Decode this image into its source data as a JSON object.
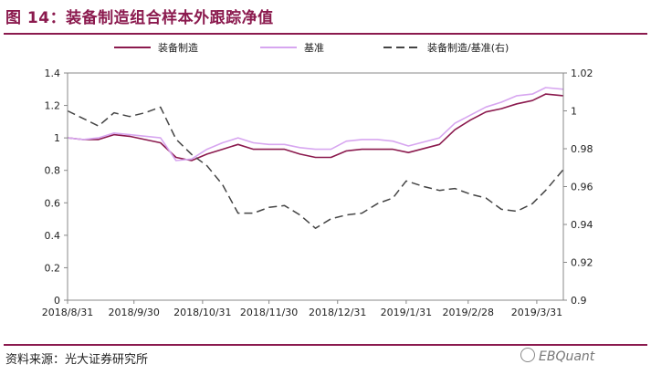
{
  "header": {
    "title": "图 14：装备制造组合样本外跟踪净值"
  },
  "footer": {
    "source": "资料来源：光大证券研究所",
    "watermark": "EBQuant"
  },
  "colors": {
    "title": "#8B1A4E",
    "series_portfolio": "#8B1A4E",
    "series_benchmark": "#D7A6F0",
    "series_ratio": "#444444"
  },
  "chart_data": {
    "type": "line",
    "legend_position": "top",
    "grid": false,
    "x_ticks": [
      "2018/8/31",
      "2018/9/30",
      "2018/10/31",
      "2018/11/30",
      "2018/12/31",
      "2019/1/31",
      "2019/2/28",
      "2019/3/31"
    ],
    "x_range": [
      "2018-08-31",
      "2019-04-12"
    ],
    "y_left": {
      "range": [
        0,
        1.4
      ],
      "ticks": [
        "0",
        "0.2",
        "0.4",
        "0.6",
        "0.8",
        "1",
        "1.2",
        "1.4"
      ]
    },
    "y_right": {
      "range": [
        0.9,
        1.02
      ],
      "ticks": [
        "0.9",
        "0.92",
        "0.94",
        "0.96",
        "0.98",
        "1",
        "1.02"
      ]
    },
    "series": [
      {
        "name": "装备制造",
        "axis": "left",
        "style": "solid",
        "data": [
          [
            "2018-08-31",
            1.0
          ],
          [
            "2018-09-07",
            0.99
          ],
          [
            "2018-09-14",
            0.99
          ],
          [
            "2018-09-21",
            1.02
          ],
          [
            "2018-09-28",
            1.01
          ],
          [
            "2018-10-12",
            0.97
          ],
          [
            "2018-10-19",
            0.88
          ],
          [
            "2018-10-26",
            0.86
          ],
          [
            "2018-11-02",
            0.9
          ],
          [
            "2018-11-09",
            0.93
          ],
          [
            "2018-11-16",
            0.96
          ],
          [
            "2018-11-23",
            0.93
          ],
          [
            "2018-11-30",
            0.93
          ],
          [
            "2018-12-07",
            0.93
          ],
          [
            "2018-12-14",
            0.9
          ],
          [
            "2018-12-21",
            0.88
          ],
          [
            "2018-12-28",
            0.88
          ],
          [
            "2019-01-04",
            0.92
          ],
          [
            "2019-01-11",
            0.93
          ],
          [
            "2019-01-18",
            0.93
          ],
          [
            "2019-01-25",
            0.93
          ],
          [
            "2019-02-01",
            0.91
          ],
          [
            "2019-02-15",
            0.96
          ],
          [
            "2019-02-22",
            1.05
          ],
          [
            "2019-03-01",
            1.11
          ],
          [
            "2019-03-08",
            1.16
          ],
          [
            "2019-03-15",
            1.18
          ],
          [
            "2019-03-22",
            1.21
          ],
          [
            "2019-03-29",
            1.23
          ],
          [
            "2019-04-04",
            1.27
          ],
          [
            "2019-04-12",
            1.26
          ]
        ]
      },
      {
        "name": "基准",
        "axis": "left",
        "style": "solid",
        "data": [
          [
            "2018-08-31",
            1.0
          ],
          [
            "2018-09-07",
            0.99
          ],
          [
            "2018-09-14",
            1.0
          ],
          [
            "2018-09-21",
            1.03
          ],
          [
            "2018-09-28",
            1.02
          ],
          [
            "2018-10-12",
            1.0
          ],
          [
            "2018-10-19",
            0.86
          ],
          [
            "2018-10-26",
            0.87
          ],
          [
            "2018-11-02",
            0.93
          ],
          [
            "2018-11-09",
            0.97
          ],
          [
            "2018-11-16",
            1.0
          ],
          [
            "2018-11-23",
            0.97
          ],
          [
            "2018-11-30",
            0.96
          ],
          [
            "2018-12-07",
            0.96
          ],
          [
            "2018-12-14",
            0.94
          ],
          [
            "2018-12-21",
            0.93
          ],
          [
            "2018-12-28",
            0.93
          ],
          [
            "2019-01-04",
            0.98
          ],
          [
            "2019-01-11",
            0.99
          ],
          [
            "2019-01-18",
            0.99
          ],
          [
            "2019-01-25",
            0.98
          ],
          [
            "2019-02-01",
            0.95
          ],
          [
            "2019-02-15",
            1.0
          ],
          [
            "2019-02-22",
            1.09
          ],
          [
            "2019-03-01",
            1.14
          ],
          [
            "2019-03-08",
            1.19
          ],
          [
            "2019-03-15",
            1.22
          ],
          [
            "2019-03-22",
            1.26
          ],
          [
            "2019-03-29",
            1.27
          ],
          [
            "2019-04-04",
            1.31
          ],
          [
            "2019-04-12",
            1.3
          ]
        ]
      },
      {
        "name": "装备制造/基准(右)",
        "axis": "right",
        "style": "dashed",
        "data": [
          [
            "2018-08-31",
            1.0
          ],
          [
            "2018-09-07",
            0.996
          ],
          [
            "2018-09-14",
            0.992
          ],
          [
            "2018-09-21",
            0.999
          ],
          [
            "2018-09-28",
            0.997
          ],
          [
            "2018-10-05",
            0.999
          ],
          [
            "2018-10-12",
            1.002
          ],
          [
            "2018-10-19",
            0.985
          ],
          [
            "2018-10-26",
            0.977
          ],
          [
            "2018-11-02",
            0.971
          ],
          [
            "2018-11-09",
            0.961
          ],
          [
            "2018-11-16",
            0.946
          ],
          [
            "2018-11-23",
            0.946
          ],
          [
            "2018-11-30",
            0.949
          ],
          [
            "2018-12-07",
            0.95
          ],
          [
            "2018-12-14",
            0.945
          ],
          [
            "2018-12-21",
            0.938
          ],
          [
            "2018-12-28",
            0.943
          ],
          [
            "2019-01-04",
            0.945
          ],
          [
            "2019-01-11",
            0.946
          ],
          [
            "2019-01-18",
            0.951
          ],
          [
            "2019-01-25",
            0.954
          ],
          [
            "2019-01-31",
            0.963
          ],
          [
            "2019-02-08",
            0.96
          ],
          [
            "2019-02-15",
            0.958
          ],
          [
            "2019-02-22",
            0.959
          ],
          [
            "2019-03-01",
            0.956
          ],
          [
            "2019-03-08",
            0.954
          ],
          [
            "2019-03-15",
            0.948
          ],
          [
            "2019-03-22",
            0.947
          ],
          [
            "2019-03-29",
            0.951
          ],
          [
            "2019-04-04",
            0.958
          ],
          [
            "2019-04-12",
            0.969
          ]
        ]
      }
    ]
  }
}
